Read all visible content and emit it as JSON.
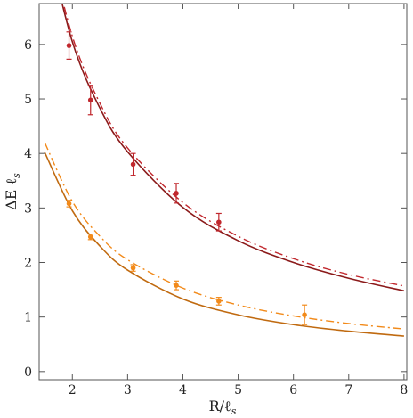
{
  "chart_data": {
    "type": "scatter",
    "title": "",
    "xlabel": {
      "main": "R/ℓ",
      "sub": "s"
    },
    "ylabel": {
      "main": "ΔE ℓ",
      "sub": "s"
    },
    "xlim": [
      1.4,
      8.05
    ],
    "ylim": [
      -0.15,
      6.75
    ],
    "xticks": [
      "2",
      "3",
      "4",
      "5",
      "6",
      "7",
      "8"
    ],
    "yticks": [
      "0",
      "1",
      "2",
      "3",
      "4",
      "5",
      "6"
    ],
    "grid": false,
    "legend": "none",
    "series": [
      {
        "color": "#c1272d",
        "points": [
          {
            "x": 1.94,
            "y": 5.98,
            "err": 0.25
          },
          {
            "x": 2.33,
            "y": 4.98,
            "err": 0.27
          },
          {
            "x": 3.1,
            "y": 3.8,
            "err": 0.2
          },
          {
            "x": 3.88,
            "y": 3.27,
            "err": 0.18
          },
          {
            "x": 4.65,
            "y": 2.74,
            "err": 0.16
          }
        ],
        "solid_curve": {
          "x": [
            1.5,
            2.0,
            2.5,
            3.0,
            4.0,
            5.0,
            6.0,
            7.0,
            8.0
          ],
          "y": [
            8.1,
            6.05,
            4.83,
            4.03,
            3.01,
            2.4,
            2.0,
            1.71,
            1.48
          ]
        },
        "dashdot_curve": {
          "x": [
            1.5,
            2.0,
            2.5,
            3.0,
            4.0,
            5.0,
            6.0,
            7.0,
            8.0
          ],
          "y": [
            8.2,
            6.15,
            4.92,
            4.1,
            3.1,
            2.48,
            2.07,
            1.78,
            1.57
          ]
        }
      },
      {
        "color": "#f28a1a",
        "points": [
          {
            "x": 1.94,
            "y": 3.08,
            "err": 0.06
          },
          {
            "x": 2.33,
            "y": 2.47,
            "err": 0.05
          },
          {
            "x": 3.1,
            "y": 1.9,
            "err": 0.06
          },
          {
            "x": 3.88,
            "y": 1.58,
            "err": 0.08
          },
          {
            "x": 4.65,
            "y": 1.29,
            "err": 0.07
          },
          {
            "x": 6.2,
            "y": 1.04,
            "err": 0.18
          }
        ],
        "solid_curve": {
          "x": [
            1.5,
            2.0,
            2.5,
            3.0,
            4.0,
            5.0,
            6.0,
            7.0,
            8.0
          ],
          "y": [
            4.02,
            2.95,
            2.3,
            1.86,
            1.33,
            1.04,
            0.86,
            0.74,
            0.65
          ]
        },
        "dashdot_curve": {
          "x": [
            1.5,
            2.0,
            2.5,
            3.0,
            4.0,
            5.0,
            6.0,
            7.0,
            8.0
          ],
          "y": [
            4.2,
            3.12,
            2.48,
            2.05,
            1.53,
            1.22,
            1.02,
            0.88,
            0.78
          ]
        }
      }
    ],
    "curve_colors": {
      "dark_red": "#8b1a1a",
      "dark_orange": "#c06a10"
    }
  }
}
